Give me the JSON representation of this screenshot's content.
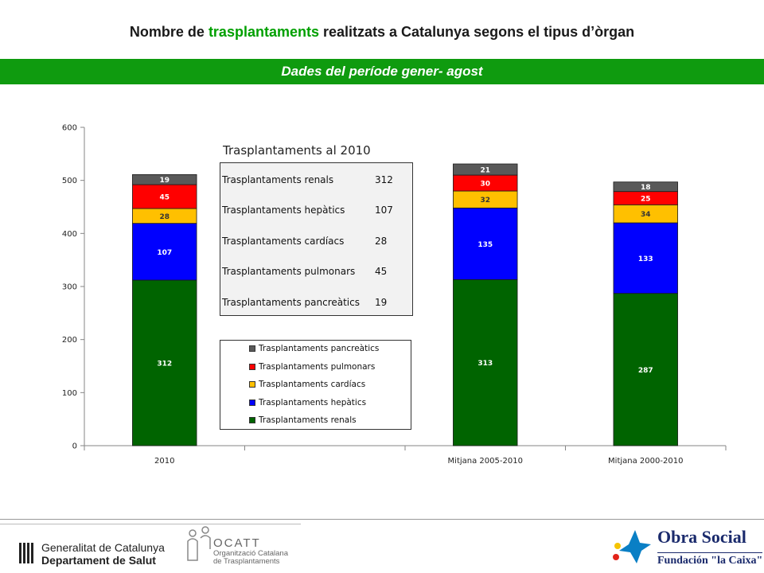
{
  "header": {
    "title_before": "Nombre de",
    "title_accent": "trasplantaments",
    "title_after": "realitzats a Catalunya segons el tipus d’òrgan",
    "banner": "Dades del període gener- agost"
  },
  "chart_data": {
    "type": "bar",
    "stacked": true,
    "categories": [
      "2010",
      "",
      "Mitjana 2005-2010",
      "Mitjana 2000-2010"
    ],
    "ylim": [
      0,
      600
    ],
    "yticks": [
      0,
      100,
      200,
      300,
      400,
      500,
      600
    ],
    "grid": false,
    "legend_placement": "center",
    "series": [
      {
        "name": "Trasplantaments renals",
        "color": "#006400",
        "label_color": "#ffffff",
        "values": [
          312,
          null,
          313,
          287
        ]
      },
      {
        "name": "Trasplantaments hepàtics",
        "color": "#0000ff",
        "label_color": "#ffffff",
        "values": [
          107,
          null,
          135,
          133
        ]
      },
      {
        "name": "Trasplantaments cardíacs",
        "color": "#ffc000",
        "label_color": "#333333",
        "values": [
          28,
          null,
          32,
          34
        ]
      },
      {
        "name": "Trasplantaments pulmonars",
        "color": "#ff0000",
        "label_color": "#ffffff",
        "values": [
          45,
          null,
          30,
          25
        ]
      },
      {
        "name": "Trasplantaments pancreàtics",
        "color": "#595959",
        "label_color": "#ffffff",
        "values": [
          19,
          null,
          21,
          18
        ]
      }
    ],
    "legend_order": [
      "Trasplantaments pancreàtics",
      "Trasplantaments pulmonars",
      "Trasplantaments cardíacs",
      "Trasplantaments hepàtics",
      "Trasplantaments renals"
    ]
  },
  "inset_table": {
    "title": "Trasplantaments al 2010",
    "rows": [
      {
        "label": "Trasplantaments renals",
        "value": "312"
      },
      {
        "label": "Trasplantaments hepàtics",
        "value": "107"
      },
      {
        "label": "Trasplantaments cardíacs",
        "value": "28"
      },
      {
        "label": "Trasplantaments pulmonars",
        "value": "45"
      },
      {
        "label": "Trasplantaments pancreàtics",
        "value": "19"
      }
    ]
  },
  "footer": {
    "generalitat_line1": "Generalitat de Catalunya",
    "generalitat_line2": "Departament de Salut",
    "ocatt_name": "OCATT",
    "ocatt_line1": "Organització Catalana",
    "ocatt_line2": "de Trasplantaments",
    "obra_social": "Obra Social",
    "fundacion": "Fundación \"la Caixa\""
  }
}
